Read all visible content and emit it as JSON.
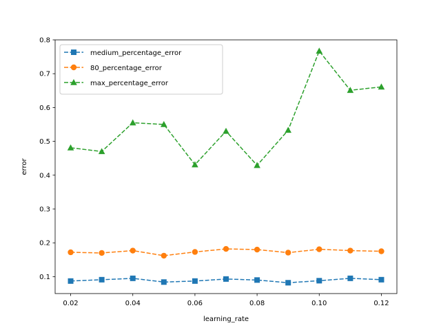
{
  "chart_data": {
    "type": "line",
    "title": "",
    "xlabel": "learning_rate",
    "ylabel": "error",
    "xlim": [
      0.015,
      0.125
    ],
    "ylim": [
      0.05,
      0.8
    ],
    "xticks": [
      0.02,
      0.04,
      0.06,
      0.08,
      0.1,
      0.12
    ],
    "xtick_labels": [
      "0.02",
      "0.04",
      "0.06",
      "0.08",
      "0.10",
      "0.12"
    ],
    "yticks": [
      0.1,
      0.2,
      0.3,
      0.4,
      0.5,
      0.6,
      0.7,
      0.8
    ],
    "ytick_labels": [
      "0.1",
      "0.2",
      "0.3",
      "0.4",
      "0.5",
      "0.6",
      "0.7",
      "0.8"
    ],
    "grid": false,
    "legend_position": "top-left",
    "x": [
      0.02,
      0.03,
      0.04,
      0.05,
      0.06,
      0.07,
      0.08,
      0.09,
      0.1,
      0.11,
      0.12
    ],
    "series": [
      {
        "name": "medium_percentage_error",
        "color": "#1f77b4",
        "marker": "square",
        "linestyle": "dashed",
        "values": [
          0.087,
          0.091,
          0.095,
          0.084,
          0.087,
          0.093,
          0.09,
          0.082,
          0.088,
          0.095,
          0.091
        ]
      },
      {
        "name": "80_percentage_error",
        "color": "#ff7f0e",
        "marker": "circle",
        "linestyle": "dashed",
        "values": [
          0.172,
          0.17,
          0.177,
          0.162,
          0.173,
          0.182,
          0.18,
          0.171,
          0.181,
          0.177,
          0.175
        ]
      },
      {
        "name": "max_percentage_error",
        "color": "#2ca02c",
        "marker": "triangle",
        "linestyle": "dashed",
        "values": [
          0.481,
          0.47,
          0.555,
          0.55,
          0.431,
          0.53,
          0.429,
          0.533,
          0.767,
          0.651,
          0.661
        ]
      }
    ]
  }
}
